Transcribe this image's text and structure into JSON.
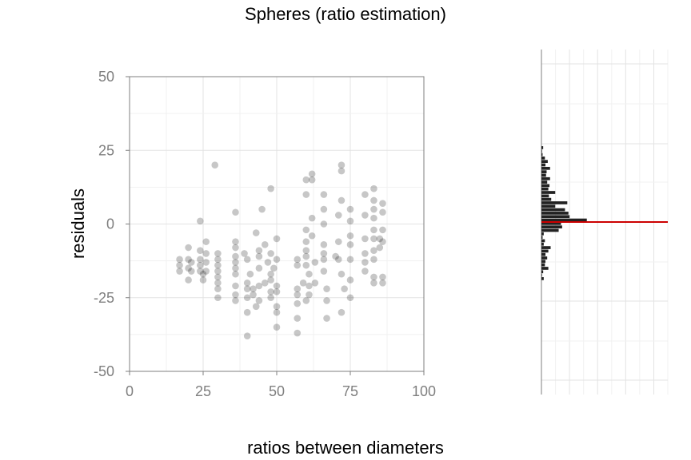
{
  "chart_data": [
    {
      "type": "scatter",
      "title": "Spheres (ratio estimation)",
      "xlabel": "ratios between diameters",
      "ylabel": "residuals",
      "xlim": [
        0,
        100
      ],
      "ylim": [
        -50,
        50
      ],
      "x_ticks": [
        "0",
        "25",
        "50",
        "75",
        "100"
      ],
      "y_ticks": [
        "50",
        "25",
        "0",
        "-25",
        "-50"
      ],
      "grid": true,
      "point_color": "#000000",
      "points": [
        [
          17,
          -12
        ],
        [
          17,
          -14
        ],
        [
          17,
          -16
        ],
        [
          20,
          -8
        ],
        [
          20,
          -12
        ],
        [
          20,
          -15
        ],
        [
          20,
          -19
        ],
        [
          21,
          -13
        ],
        [
          21,
          -16
        ],
        [
          24,
          1
        ],
        [
          24,
          -9
        ],
        [
          24,
          -12
        ],
        [
          24,
          -14
        ],
        [
          24,
          -16
        ],
        [
          25,
          -17
        ],
        [
          25,
          -19
        ],
        [
          26,
          -6
        ],
        [
          26,
          -10
        ],
        [
          26,
          -13
        ],
        [
          26,
          -16
        ],
        [
          29,
          20
        ],
        [
          30,
          -10
        ],
        [
          30,
          -12
        ],
        [
          30,
          -14
        ],
        [
          30,
          -16
        ],
        [
          30,
          -18
        ],
        [
          30,
          -20
        ],
        [
          30,
          -22
        ],
        [
          30,
          -25
        ],
        [
          36,
          4
        ],
        [
          36,
          -6
        ],
        [
          36,
          -8
        ],
        [
          36,
          -11
        ],
        [
          36,
          -13
        ],
        [
          36,
          -15
        ],
        [
          36,
          -17
        ],
        [
          36,
          -21
        ],
        [
          36,
          -24
        ],
        [
          36,
          -26
        ],
        [
          39,
          -10
        ],
        [
          40,
          -12
        ],
        [
          40,
          -20
        ],
        [
          40,
          -22
        ],
        [
          40,
          -25
        ],
        [
          40,
          -30
        ],
        [
          40,
          -38
        ],
        [
          41,
          -17
        ],
        [
          42,
          -22
        ],
        [
          42,
          -24
        ],
        [
          43,
          -3
        ],
        [
          43,
          -28
        ],
        [
          44,
          -9
        ],
        [
          44,
          -11
        ],
        [
          44,
          -15
        ],
        [
          44,
          -21
        ],
        [
          44,
          -26
        ],
        [
          45,
          5
        ],
        [
          46,
          -7
        ],
        [
          46,
          -20
        ],
        [
          47,
          -13
        ],
        [
          48,
          12
        ],
        [
          48,
          -10
        ],
        [
          48,
          -17
        ],
        [
          48,
          -19
        ],
        [
          48,
          -23
        ],
        [
          48,
          -25
        ],
        [
          49,
          -15
        ],
        [
          50,
          -5
        ],
        [
          50,
          -12
        ],
        [
          50,
          -21
        ],
        [
          50,
          -23
        ],
        [
          50,
          -28
        ],
        [
          50,
          -30
        ],
        [
          50,
          -35
        ],
        [
          57,
          -12
        ],
        [
          57,
          -14
        ],
        [
          57,
          -22
        ],
        [
          57,
          -24
        ],
        [
          57,
          -27
        ],
        [
          57,
          -32
        ],
        [
          57,
          -37
        ],
        [
          59,
          -20
        ],
        [
          60,
          -26
        ],
        [
          60,
          -2
        ],
        [
          60,
          -6
        ],
        [
          60,
          -9
        ],
        [
          60,
          -11
        ],
        [
          60,
          -14
        ],
        [
          61,
          -17
        ],
        [
          61,
          -21
        ],
        [
          61,
          -24
        ],
        [
          60,
          15
        ],
        [
          60,
          10
        ],
        [
          62,
          17
        ],
        [
          62,
          15
        ],
        [
          62,
          2
        ],
        [
          62,
          -4
        ],
        [
          63,
          -13
        ],
        [
          63,
          -20
        ],
        [
          66,
          10
        ],
        [
          66,
          5
        ],
        [
          66,
          0
        ],
        [
          66,
          -7
        ],
        [
          66,
          -10
        ],
        [
          66,
          -12
        ],
        [
          66,
          -16
        ],
        [
          67,
          -22
        ],
        [
          67,
          -26
        ],
        [
          67,
          -32
        ],
        [
          70,
          -11
        ],
        [
          71,
          -6
        ],
        [
          71,
          -12
        ],
        [
          71,
          3
        ],
        [
          72,
          20
        ],
        [
          72,
          18
        ],
        [
          72,
          8
        ],
        [
          72,
          -17
        ],
        [
          72,
          -30
        ],
        [
          73,
          -22
        ],
        [
          75,
          5
        ],
        [
          75,
          1
        ],
        [
          75,
          -4
        ],
        [
          75,
          -7
        ],
        [
          75,
          -12
        ],
        [
          75,
          -19
        ],
        [
          75,
          -25
        ],
        [
          80,
          10
        ],
        [
          80,
          3
        ],
        [
          80,
          -5
        ],
        [
          80,
          -10
        ],
        [
          80,
          -13
        ],
        [
          80,
          -16
        ],
        [
          83,
          12
        ],
        [
          83,
          8
        ],
        [
          83,
          5
        ],
        [
          83,
          2
        ],
        [
          83,
          -2
        ],
        [
          83,
          -5
        ],
        [
          83,
          -9
        ],
        [
          83,
          -12
        ],
        [
          83,
          -18
        ],
        [
          83,
          -20
        ],
        [
          85,
          -5
        ],
        [
          85,
          -8
        ],
        [
          86,
          7
        ],
        [
          86,
          4
        ],
        [
          86,
          -2
        ],
        [
          86,
          -6
        ],
        [
          86,
          -18
        ],
        [
          86,
          -20
        ]
      ]
    },
    {
      "type": "bar",
      "orientation": "horizontal",
      "bar_color": "#222222",
      "reference_line": {
        "value": 0,
        "color": "#cc0000"
      },
      "bins": [
        [
          43,
          3
        ],
        [
          41,
          1
        ],
        [
          39,
          2
        ],
        [
          37,
          6
        ],
        [
          35,
          11
        ],
        [
          33,
          7
        ],
        [
          31,
          15
        ],
        [
          29,
          9
        ],
        [
          27,
          8
        ],
        [
          25,
          15
        ],
        [
          23,
          10
        ],
        [
          21,
          14
        ],
        [
          19,
          12
        ],
        [
          17,
          24
        ],
        [
          15,
          13
        ],
        [
          13,
          17
        ],
        [
          11,
          45
        ],
        [
          9,
          24
        ],
        [
          7,
          41
        ],
        [
          5,
          47
        ],
        [
          3,
          49
        ],
        [
          1,
          79
        ],
        [
          -1,
          34
        ],
        [
          -3,
          36
        ],
        [
          -5,
          30
        ],
        [
          -7,
          4
        ],
        [
          -9,
          2
        ],
        [
          -11,
          6
        ],
        [
          -13,
          4
        ],
        [
          -15,
          16
        ],
        [
          -17,
          12
        ],
        [
          -19,
          7
        ],
        [
          -21,
          10
        ],
        [
          -23,
          7
        ],
        [
          -25,
          6
        ],
        [
          -27,
          12
        ],
        [
          -29,
          3
        ],
        [
          -31,
          1
        ],
        [
          -33,
          4
        ]
      ]
    }
  ]
}
